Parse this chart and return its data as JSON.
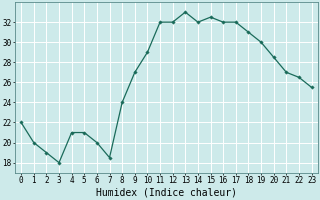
{
  "x": [
    0,
    1,
    2,
    3,
    4,
    5,
    6,
    7,
    8,
    9,
    10,
    11,
    12,
    13,
    14,
    15,
    16,
    17,
    18,
    19,
    20,
    21,
    22,
    23
  ],
  "y": [
    22,
    20,
    19,
    18,
    21,
    21,
    20,
    18.5,
    24,
    27,
    29,
    32,
    32,
    33,
    32,
    32.5,
    32,
    32,
    31,
    30,
    28.5,
    27,
    26.5,
    25.5
  ],
  "line_color": "#1a6b5a",
  "marker": "D",
  "marker_size": 1.8,
  "linewidth": 0.9,
  "xlabel": "Humidex (Indice chaleur)",
  "xlim": [
    -0.5,
    23.5
  ],
  "ylim": [
    17,
    34
  ],
  "yticks": [
    18,
    20,
    22,
    24,
    26,
    28,
    30,
    32
  ],
  "xtick_labels": [
    "0",
    "1",
    "2",
    "3",
    "4",
    "5",
    "6",
    "7",
    "8",
    "9",
    "10",
    "11",
    "12",
    "13",
    "14",
    "15",
    "16",
    "17",
    "18",
    "19",
    "20",
    "21",
    "22",
    "23"
  ],
  "background_color": "#cdeaea",
  "grid_color": "#ffffff",
  "tick_fontsize": 5.5,
  "xlabel_fontsize": 7.0,
  "spine_color": "#5a8a8a"
}
